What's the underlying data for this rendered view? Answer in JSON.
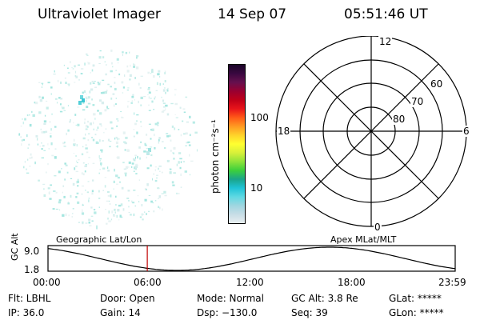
{
  "header": {
    "instrument": "Ultraviolet Imager",
    "date": "14 Sep 07",
    "time": "05:51:46 UT"
  },
  "colorbar": {
    "label": "photon cm⁻²s⁻¹",
    "scale": "log",
    "range": [
      2,
      1000
    ],
    "ticks": [
      "100",
      "10"
    ],
    "colors": [
      "#e8eef0",
      "#c8dde6",
      "#9fd6e0",
      "#5fd9e3",
      "#1fc3d6",
      "#1aa58a",
      "#3ccf3c",
      "#8fe33a",
      "#d8f03a",
      "#ffff30",
      "#ffd22a",
      "#ff9a22",
      "#ff5a18",
      "#e8141a",
      "#c00018",
      "#990030",
      "#66104e",
      "#3a0840",
      "#1a0628"
    ]
  },
  "polar": {
    "mlt_labels": {
      "top": "12",
      "left": "18",
      "right": "6",
      "bottom": "0"
    },
    "lat_labels": [
      "60",
      "70",
      "80"
    ]
  },
  "orbit": {
    "ylabel": "GC Alt",
    "yticks": [
      "9.0",
      "1.8"
    ],
    "left_label": "Geographic Lat/Lon",
    "right_label": "Apex MLat/MLT",
    "xticks": [
      "00:00",
      "06:00",
      "12:00",
      "18:00",
      "23:59"
    ],
    "current_time_marker": "05:51"
  },
  "info": {
    "row1": {
      "flt": "Flt: LBHL",
      "door": "Door: Open",
      "mode": "Mode: Normal",
      "gcalt": "GC Alt: 3.8 Re",
      "glat": "GLat: *****"
    },
    "row2": {
      "ip": "IP: 36.0",
      "gain": "Gain: 14",
      "dsp": "Dsp: −130.0",
      "seq": "Seq: 39",
      "glon": "GLon: *****"
    }
  }
}
